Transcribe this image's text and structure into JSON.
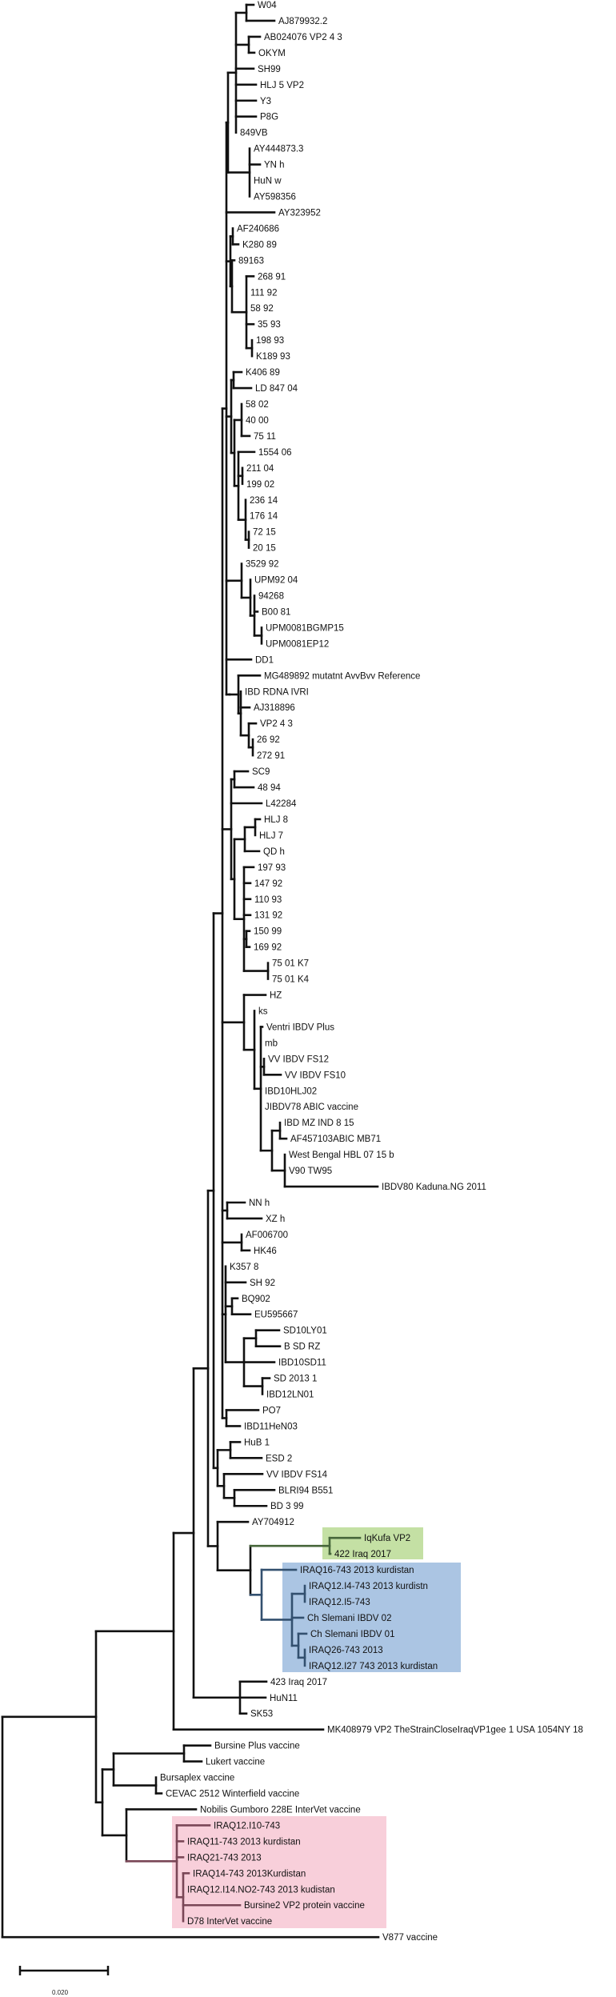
{
  "tree": {
    "leaves": [
      "W04",
      "AJ879932.2",
      "AB024076 VP2 4 3",
      "OKYM",
      "SH99",
      "HLJ 5 VP2",
      "Y3",
      "P8G",
      "849VB",
      "AY444873.3",
      "YN h",
      "HuN w",
      "AY598356",
      "AY323952",
      "AF240686",
      "K280 89",
      "89163",
      "268 91",
      "111 92",
      "58 92",
      "35 93",
      "198 93",
      "K189 93",
      "K406 89",
      "LD 847 04",
      "58 02",
      "40 00",
      "75 11",
      "1554 06",
      "211 04",
      "199 02",
      "236 14",
      "176 14",
      "72 15",
      "20 15",
      "3529 92",
      "UPM92 04",
      "94268",
      "B00 81",
      "UPM0081BGMP15",
      "UPM0081EP12",
      "DD1",
      "MG489892 mutatnt AvvBvv Reference",
      "IBD RDNA IVRI",
      "AJ318896",
      "VP2 4 3",
      "26 92",
      "272 91",
      "SC9",
      "48 94",
      "L42284",
      "HLJ 8",
      "HLJ 7",
      "QD h",
      "197 93",
      "147 92",
      "110 93",
      "131 92",
      "150 99",
      "169 92",
      "75 01 K7",
      "75 01 K4",
      "HZ",
      "ks",
      "Ventri IBDV Plus",
      "mb",
      "VV IBDV FS12",
      "VV IBDV FS10",
      "IBD10HLJ02",
      "JIBDV78 ABIC vaccine",
      "IBD MZ IND 8 15",
      "AF457103ABIC MB71",
      "West Bengal HBL 07 15 b",
      "V90 TW95",
      "IBDV80 Kaduna.NG 2011",
      "NN h",
      "XZ h",
      "AF006700",
      "HK46",
      "K357 8",
      "SH 92",
      "BQ902",
      "EU595667",
      "SD10LY01",
      "B SD RZ",
      "IBD10SD11",
      "SD 2013 1",
      "IBD12LN01",
      "PO7",
      "IBD11HeN03",
      "HuB 1",
      "ESD 2",
      "VV IBDV FS14",
      "BLRI94 B551",
      "BD 3 99",
      "AY704912",
      "IqKufa VP2",
      "422 Iraq 2017",
      "IRAQ16-743 2013 kurdistan",
      "IRAQ12.I4-743 2013 kurdistn",
      "IRAQ12.I5-743",
      "Ch Slemani IBDV 02",
      "Ch Slemani IBDV 01",
      "IRAQ26-743 2013",
      "IRAQ12.I27 743 2013 kurdistan",
      "423 Iraq 2017",
      "HuN11",
      "SK53",
      "MK408979 VP2 TheStrainCloseIraqVP1gee 1 USA 1054NY 18",
      "Bursine Plus vaccine",
      "Lukert vaccine",
      "Bursaplex vaccine",
      "CEVAC 2512 Winterfield vaccine",
      "Nobilis Gumboro 228E InterVet vaccine",
      "IRAQ12.I10-743",
      "IRAQ11-743 2013 kurdistan",
      "IRAQ21-743 2013",
      "IRAQ14-743 2013Kurdistan",
      "IRAQ12.I14.NO2-743 2013 kudistan",
      "Bursine2 VP2 protein vaccine",
      "D78 InterVet vaccine",
      "V877 vaccine"
    ],
    "highlight_groups": [
      {
        "name": "green",
        "first_leaf": 96,
        "last_leaf": 97,
        "background": "#c4e0a4",
        "line": "#46663a",
        "text": "#587a3c"
      },
      {
        "name": "blue",
        "first_leaf": 98,
        "last_leaf": 104,
        "background": "#abc5e3",
        "line": "#33506f",
        "text": "#3e5a7c"
      },
      {
        "name": "pink",
        "first_leaf": 114,
        "last_leaf": 120,
        "background": "#f8cfda",
        "line": "#7a4757",
        "text": "#8c6473"
      }
    ],
    "line_color": "#111111"
  },
  "scale_bar": {
    "label": "0.020",
    "value": 0.02
  }
}
